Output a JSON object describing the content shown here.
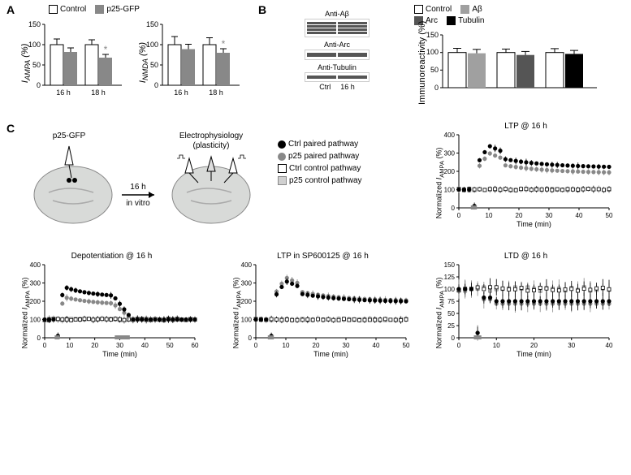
{
  "panelA": {
    "label": "A",
    "legend": [
      {
        "label": "Control",
        "fill": "#ffffff",
        "border": "#000000"
      },
      {
        "label": "p25-GFP",
        "fill": "#888888",
        "border": "#888888"
      }
    ],
    "chart1": {
      "ylabel": "I_AMPA (%)",
      "ylim": [
        0,
        150
      ],
      "ytick_step": 50,
      "categories": [
        "16 h",
        "18 h"
      ],
      "bars": [
        {
          "x": "16 h",
          "group": "Control",
          "value": 100,
          "error": 14,
          "fill": "#ffffff"
        },
        {
          "x": "16 h",
          "group": "p25-GFP",
          "value": 82,
          "error": 10,
          "fill": "#888888"
        },
        {
          "x": "18 h",
          "group": "Control",
          "value": 100,
          "error": 12,
          "fill": "#ffffff"
        },
        {
          "x": "18 h",
          "group": "p25-GFP",
          "value": 68,
          "error": 8,
          "fill": "#888888",
          "sig": "*"
        }
      ]
    },
    "chart2": {
      "ylabel": "I_NMDA (%)",
      "ylim": [
        0,
        150
      ],
      "ytick_step": 50,
      "categories": [
        "16 h",
        "18 h"
      ],
      "bars": [
        {
          "x": "16 h",
          "group": "Control",
          "value": 100,
          "error": 20,
          "fill": "#ffffff"
        },
        {
          "x": "16 h",
          "group": "p25-GFP",
          "value": 89,
          "error": 12,
          "fill": "#888888"
        },
        {
          "x": "18 h",
          "group": "Control",
          "value": 100,
          "error": 17,
          "fill": "#ffffff"
        },
        {
          "x": "18 h",
          "group": "p25-GFP",
          "value": 80,
          "error": 10,
          "fill": "#888888",
          "sig": "*"
        }
      ]
    }
  },
  "panelB": {
    "label": "B",
    "gels": [
      {
        "label": "Anti-Aβ",
        "bands": 4
      },
      {
        "label": "Anti-Arc",
        "bands": 1
      },
      {
        "label": "Anti-Tubulin",
        "bands": 1
      }
    ],
    "gel_columns": [
      "Ctrl",
      "16 h"
    ],
    "legend": [
      {
        "label": "Control",
        "fill": "#ffffff",
        "border": "#000000"
      },
      {
        "label": "Aβ",
        "fill": "#a0a0a0",
        "border": "#a0a0a0"
      },
      {
        "label": "Arc",
        "fill": "#555555",
        "border": "#555555"
      },
      {
        "label": "Tubulin",
        "fill": "#000000",
        "border": "#000000"
      }
    ],
    "chart": {
      "ylabel": "Immunoreactivity (%)",
      "ylim": [
        0,
        150
      ],
      "ytick_step": 50,
      "bars": [
        {
          "value": 100,
          "error": 12,
          "fill": "#ffffff"
        },
        {
          "value": 98,
          "error": 11,
          "fill": "#a0a0a0"
        },
        {
          "value": 100,
          "error": 10,
          "fill": "#ffffff"
        },
        {
          "value": 93,
          "error": 10,
          "fill": "#555555"
        },
        {
          "value": 100,
          "error": 11,
          "fill": "#ffffff"
        },
        {
          "value": 96,
          "error": 10,
          "fill": "#000000"
        }
      ]
    }
  },
  "panelC": {
    "label": "C",
    "diagram": {
      "injection_label": "p25-GFP",
      "arrow_label_top": "16 h",
      "arrow_label_bottom": "in vitro",
      "recording_label": "Electrophysiology",
      "recording_sublabel": "(plasticity)"
    },
    "legend": [
      {
        "label": "Ctrl paired pathway",
        "fill": "#000000",
        "shape": "circle"
      },
      {
        "label": "p25 paired pathway",
        "fill": "#888888",
        "shape": "circle"
      },
      {
        "label": "Ctrl control pathway",
        "fill": "#ffffff",
        "border": "#000000",
        "shape": "square"
      },
      {
        "label": "p25 control pathway",
        "fill": "#d0d0d0",
        "border": "#888888",
        "shape": "square"
      }
    ],
    "charts": {
      "ltp16": {
        "title": "LTP @ 16 h",
        "xlabel": "Time (min)",
        "ylabel": "Normalized I_AMPA (%)",
        "xlim": [
          0,
          50
        ],
        "xtick_step": 10,
        "ylim": [
          0,
          400
        ],
        "ytick_step": 100,
        "pairing_x": [
          4,
          6
        ]
      },
      "depot16": {
        "title": "Depotentiation @ 16 h",
        "xlabel": "Time (min)",
        "ylabel": "Normalized I_AMPA (%)",
        "xlim": [
          0,
          60
        ],
        "xtick_step": 10,
        "ylim": [
          0,
          400
        ],
        "ytick_step": 100,
        "pairing_x": [
          4,
          6
        ],
        "lfs_x": [
          28,
          34
        ]
      },
      "ltp_sp": {
        "title": "LTP in SP600125 @ 16 h",
        "xlabel": "Time (min)",
        "ylabel": "Normalized I_AMPA (%)",
        "xlim": [
          0,
          50
        ],
        "xtick_step": 10,
        "ylim": [
          0,
          400
        ],
        "ytick_step": 100,
        "pairing_x": [
          4,
          6
        ]
      },
      "ltd16": {
        "title": "LTD @ 16 h",
        "xlabel": "Time (min)",
        "ylabel": "Normalized I_AMPA (%)",
        "xlim": [
          0,
          40
        ],
        "xtick_step": 10,
        "ylim": [
          0,
          150
        ],
        "ytick_step": 25,
        "pairing_x": [
          4,
          6
        ]
      }
    }
  },
  "colors": {
    "ctrl_filled": "#000000",
    "p25_filled": "#888888",
    "ctrl_open": "#ffffff",
    "p25_open": "#d0d0d0",
    "axis": "#000000",
    "sig": "#888888"
  }
}
